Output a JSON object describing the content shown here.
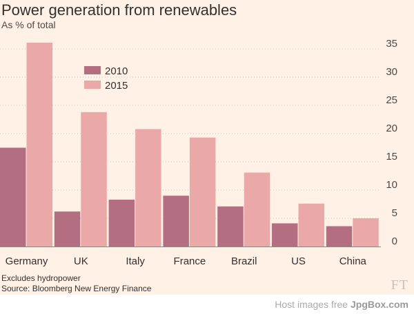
{
  "header": {
    "title": "Power generation from renewables",
    "subtitle": "As % of total"
  },
  "notes": {
    "line1": "Excludes hydropower",
    "line2": "Source: Bloomberg New Energy Finance"
  },
  "brand": {
    "logo_text": "FT"
  },
  "watermark": {
    "prefix": "Host images free",
    "site": "JpgBox.com"
  },
  "colors": {
    "background": "#fff1e5",
    "series_2010": "#b46e82",
    "series_2015": "#eaa9a8",
    "gridline": "#c9c2bb"
  },
  "chart_data": {
    "type": "bar",
    "title": "Power generation from renewables",
    "subtitle": "As % of total",
    "categories": [
      "Germany",
      "UK",
      "Italy",
      "France",
      "Brazil",
      "US",
      "China"
    ],
    "series": [
      {
        "name": "2010",
        "values": [
          17.5,
          6.2,
          8.3,
          9.0,
          7.1,
          4.1,
          3.6
        ]
      },
      {
        "name": "2015",
        "values": [
          36.1,
          23.8,
          20.8,
          19.3,
          13.1,
          7.6,
          5.0
        ]
      }
    ],
    "yticks": [
      0,
      5,
      10,
      15,
      20,
      25,
      30,
      35
    ],
    "ylim": [
      0,
      35
    ],
    "y_axis_side": "right",
    "grid": "horizontal dotted",
    "legend_placement": "top-left inside",
    "xlabel": "",
    "ylabel": ""
  }
}
